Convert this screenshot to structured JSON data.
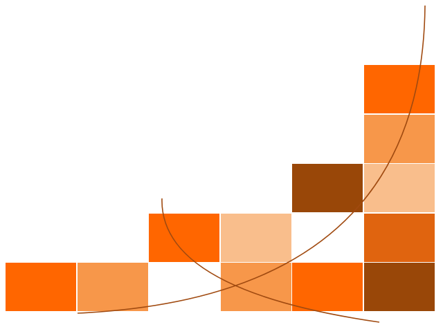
{
  "palette": {
    "orange": "#ff6600",
    "light-orange": "#f7974a",
    "peach": "#f9be8c",
    "dark-orange": "#e0640f",
    "brown": "#994708",
    "white": "#ffffff",
    "arc": "#a04a10"
  },
  "grid": {
    "columns": 6,
    "rows": 5,
    "tiles": [
      {
        "col": 5,
        "row": 0,
        "color": "orange"
      },
      {
        "col": 5,
        "row": 1,
        "color": "light-orange"
      },
      {
        "col": 4,
        "row": 2,
        "color": "brown"
      },
      {
        "col": 5,
        "row": 2,
        "color": "peach"
      },
      {
        "col": 2,
        "row": 3,
        "color": "orange"
      },
      {
        "col": 3,
        "row": 3,
        "color": "peach"
      },
      {
        "col": 4,
        "row": 3,
        "color": "white"
      },
      {
        "col": 5,
        "row": 3,
        "color": "dark-orange"
      },
      {
        "col": 0,
        "row": 4,
        "color": "orange"
      },
      {
        "col": 1,
        "row": 4,
        "color": "light-orange"
      },
      {
        "col": 3,
        "row": 4,
        "color": "light-orange"
      },
      {
        "col": 4,
        "row": 4,
        "color": "orange"
      },
      {
        "col": 5,
        "row": 4,
        "color": "brown"
      }
    ]
  },
  "arcs": [
    {
      "name": "arc-large"
    },
    {
      "name": "arc-small"
    }
  ]
}
